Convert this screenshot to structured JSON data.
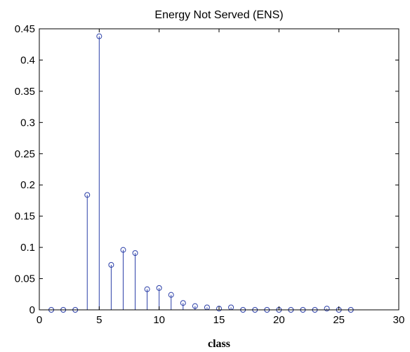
{
  "chart_data": {
    "type": "stem",
    "title": "Energy Not Served (ENS)",
    "xlabel": "class",
    "ylabel": "",
    "xlim": [
      0,
      30
    ],
    "ylim": [
      0,
      0.45
    ],
    "xticks": [
      "0",
      "5",
      "10",
      "15",
      "20",
      "25",
      "30"
    ],
    "yticks": [
      "0",
      "0.05",
      "0.1",
      "0.15",
      "0.2",
      "0.25",
      "0.3",
      "0.35",
      "0.4",
      "0.45"
    ],
    "grid": false,
    "marker": "circle",
    "colors": {
      "stem": "#2b3fa8",
      "axes": "#000000"
    },
    "x": [
      1,
      2,
      3,
      4,
      5,
      6,
      7,
      8,
      9,
      10,
      11,
      12,
      13,
      14,
      15,
      16,
      17,
      18,
      19,
      20,
      21,
      22,
      23,
      24,
      25,
      26
    ],
    "y": [
      0,
      0,
      0,
      0.184,
      0.438,
      0.072,
      0.096,
      0.091,
      0.033,
      0.035,
      0.024,
      0.011,
      0.006,
      0.004,
      0.002,
      0.004,
      0,
      0,
      0,
      0,
      0,
      0,
      0,
      0.002,
      0,
      0
    ]
  }
}
